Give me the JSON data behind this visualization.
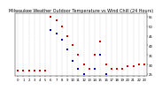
{
  "title": "Milwaukee Weather Outdoor Temperature vs Wind Chill (24 Hours)",
  "title_fontsize": 3.5,
  "temp_color": "#cc0000",
  "wind_chill_color": "#0000cc",
  "background_color": "#ffffff",
  "x_hours": [
    0,
    1,
    2,
    3,
    4,
    5,
    6,
    7,
    8,
    9,
    10,
    11,
    12,
    13,
    14,
    15,
    16,
    17,
    18,
    19,
    20,
    21,
    22,
    23
  ],
  "temp_values": [
    27,
    27,
    27,
    27,
    27,
    27,
    55,
    53,
    50,
    45,
    40,
    35,
    30,
    28,
    35,
    42,
    30,
    28,
    28,
    28,
    29,
    29,
    30,
    30
  ],
  "wind_chill_values": [
    null,
    null,
    null,
    null,
    null,
    null,
    48,
    46,
    43,
    38,
    32,
    28,
    25,
    null,
    28,
    35,
    25,
    null,
    null,
    null,
    null,
    null,
    null,
    null
  ],
  "ylim": [
    24,
    57
  ],
  "ytick_values": [
    25,
    30,
    35,
    40,
    45,
    50,
    55
  ],
  "ytick_labels": [
    "25",
    "30",
    "35",
    "40",
    "45",
    "50",
    "55"
  ],
  "xtick_step": 1,
  "xtick_values": [
    0,
    1,
    2,
    3,
    4,
    5,
    6,
    7,
    8,
    9,
    10,
    11,
    12,
    13,
    14,
    15,
    16,
    17,
    18,
    19,
    20,
    21,
    22,
    23
  ],
  "xtick_labels": [
    "0",
    "1",
    "2",
    "3",
    "4",
    "5",
    "6",
    "7",
    "8",
    "9",
    "10",
    "11",
    "12",
    "13",
    "14",
    "15",
    "16",
    "17",
    "18",
    "19",
    "20",
    "21",
    "22",
    "23"
  ],
  "marker_size": 3.5,
  "grid_color": "#bbbbbb",
  "tick_fontsize": 2.8,
  "xlim": [
    -0.5,
    23.5
  ],
  "vgrid_positions": [
    0,
    1,
    2,
    3,
    4,
    5,
    6,
    7,
    8,
    9,
    10,
    11,
    12,
    13,
    14,
    15,
    16,
    17,
    18,
    19,
    20,
    21,
    22,
    23
  ]
}
